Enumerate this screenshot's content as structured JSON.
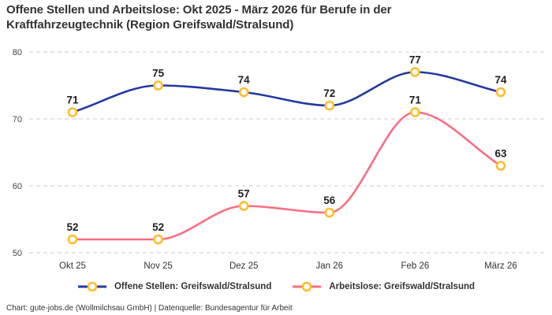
{
  "title": "Offene Stellen und Arbeitslose: Okt 2025 - März 2026 für Berufe in der Kraftfahrzeugtechnik (Region Greifswald/Stralsund)",
  "footer": "Chart: gute-jobs.de (Wollmilchsau GmbH) | Datenquelle: Bundesagentur für Arbeit",
  "chart_data": {
    "type": "line",
    "categories": [
      "Okt 25",
      "Nov 25",
      "Dez 25",
      "Jan 26",
      "Feb 26",
      "März 26"
    ],
    "series": [
      {
        "name": "Offene Stellen: Greifswald/Stralsund",
        "color": "#2239a0",
        "values": [
          71,
          75,
          74,
          72,
          77,
          74
        ]
      },
      {
        "name": "Arbeitslose: Greifswald/Stralsund",
        "color": "#fa6e84",
        "values": [
          52,
          52,
          57,
          56,
          71,
          63
        ]
      }
    ],
    "ylim": [
      50,
      80
    ],
    "yticks": [
      50,
      60,
      70,
      80
    ],
    "grid": "horizontal-dashed",
    "legend_position": "bottom",
    "line_style": "smooth-monotone",
    "marker": {
      "shape": "circle",
      "fill": "#ffffff",
      "stroke": "#fcbe2b"
    },
    "colors": {
      "grid": "#cccccc",
      "axis_text": "#444444",
      "data_label": "#1f1f1f",
      "marker_ring": "#fcbe2b"
    }
  }
}
